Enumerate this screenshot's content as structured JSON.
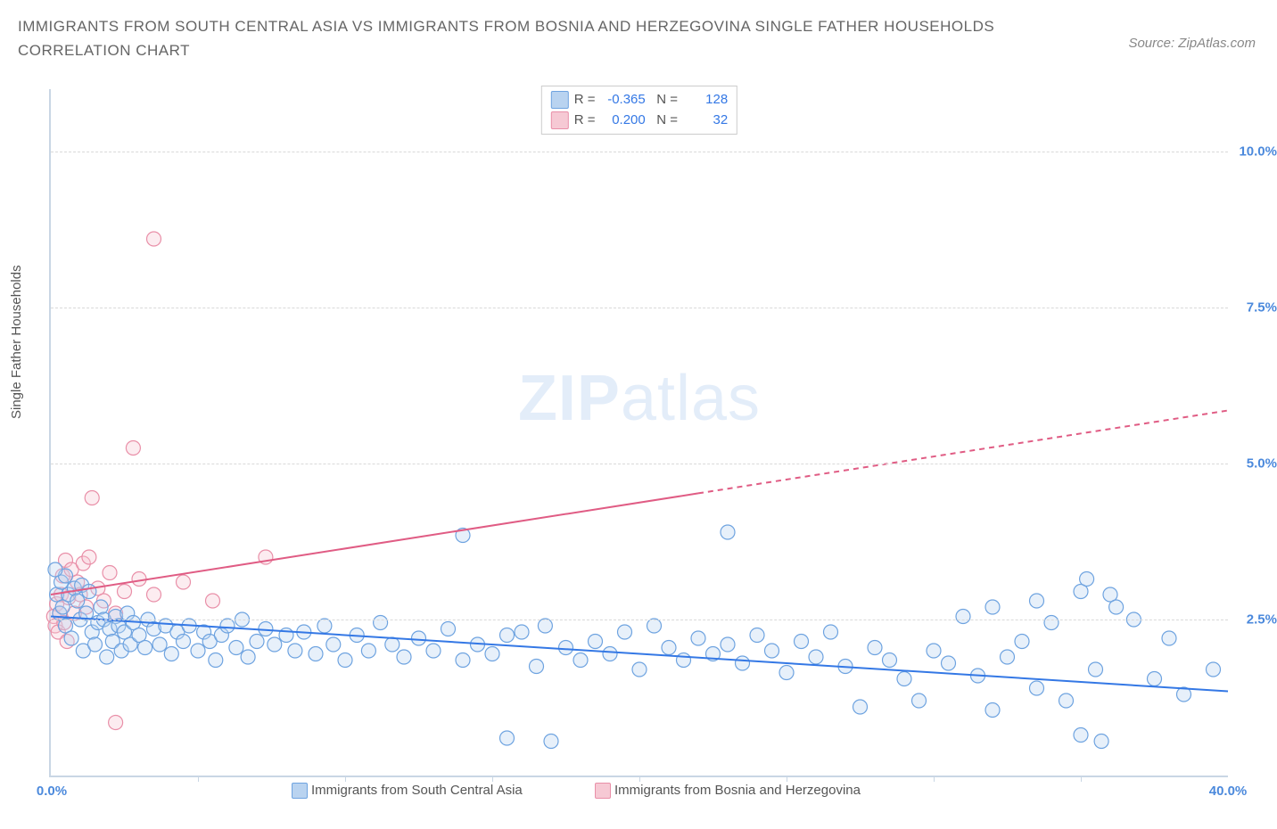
{
  "title": "IMMIGRANTS FROM SOUTH CENTRAL ASIA VS IMMIGRANTS FROM BOSNIA AND HERZEGOVINA SINGLE FATHER HOUSEHOLDS CORRELATION CHART",
  "source_label": "Source: ZipAtlas.com",
  "ylabel": "Single Father Households",
  "watermark_a": "ZIP",
  "watermark_b": "atlas",
  "chart": {
    "type": "scatter_with_regression",
    "background_color": "#ffffff",
    "grid_color": "#d9d9d9",
    "axis_color": "#c9d6e4",
    "text_color": "#555555",
    "value_color": "#4b89dc",
    "x_domain": [
      0,
      40
    ],
    "y_domain": [
      0,
      11
    ],
    "x_ticks": [
      0,
      40
    ],
    "x_tick_labels": [
      "0.0%",
      "40.0%"
    ],
    "minor_x_ticks": [
      5,
      10,
      15,
      20,
      25,
      30,
      35
    ],
    "y_gridlines": [
      2.5,
      5.0,
      7.5,
      10.0
    ],
    "y_tick_labels": [
      "2.5%",
      "5.0%",
      "7.5%",
      "10.0%"
    ],
    "marker_radius": 8,
    "marker_stroke_width": 1.2,
    "marker_fill_opacity": 0.35,
    "line_width": 2
  },
  "legend_stats": [
    {
      "name": "series-a",
      "color_fill": "#b9d3f0",
      "color_stroke": "#6ea3e0",
      "R": "-0.365",
      "N": "128"
    },
    {
      "name": "series-b",
      "color_fill": "#f6c9d4",
      "color_stroke": "#e98fa8",
      "R": "0.200",
      "N": "32"
    }
  ],
  "bottom_legend": [
    {
      "label": "Immigrants from South Central Asia",
      "fill": "#b9d3f0",
      "stroke": "#6ea3e0"
    },
    {
      "label": "Immigrants from Bosnia and Herzegovina",
      "fill": "#f6c9d4",
      "stroke": "#e98fa8"
    }
  ],
  "series_a": {
    "name": "Immigrants from South Central Asia",
    "color_fill": "#b9d3f0",
    "color_stroke": "#6ea3e0",
    "regression": {
      "x1": 0,
      "y1": 2.55,
      "x2": 40,
      "y2": 1.35,
      "dashed_after_x": null,
      "line_color": "#3478e5"
    },
    "points": [
      [
        0.2,
        2.9
      ],
      [
        0.3,
        2.6
      ],
      [
        0.35,
        3.1
      ],
      [
        0.4,
        2.7
      ],
      [
        0.5,
        2.4
      ],
      [
        0.5,
        3.2
      ],
      [
        0.6,
        2.9
      ],
      [
        0.7,
        2.2
      ],
      [
        0.8,
        3.0
      ],
      [
        0.9,
        2.8
      ],
      [
        1.0,
        2.5
      ],
      [
        1.05,
        3.05
      ],
      [
        1.1,
        2.0
      ],
      [
        1.2,
        2.6
      ],
      [
        1.3,
        2.95
      ],
      [
        1.4,
        2.3
      ],
      [
        1.5,
        2.1
      ],
      [
        1.6,
        2.45
      ],
      [
        1.7,
        2.7
      ],
      [
        1.8,
        2.5
      ],
      [
        1.9,
        1.9
      ],
      [
        2.0,
        2.35
      ],
      [
        2.1,
        2.15
      ],
      [
        2.2,
        2.55
      ],
      [
        2.3,
        2.4
      ],
      [
        2.4,
        2.0
      ],
      [
        2.5,
        2.3
      ],
      [
        2.6,
        2.6
      ],
      [
        2.7,
        2.1
      ],
      [
        2.8,
        2.45
      ],
      [
        3.0,
        2.25
      ],
      [
        3.2,
        2.05
      ],
      [
        3.3,
        2.5
      ],
      [
        3.5,
        2.35
      ],
      [
        3.7,
        2.1
      ],
      [
        3.9,
        2.4
      ],
      [
        4.1,
        1.95
      ],
      [
        4.3,
        2.3
      ],
      [
        4.5,
        2.15
      ],
      [
        4.7,
        2.4
      ],
      [
        5.0,
        2.0
      ],
      [
        5.2,
        2.3
      ],
      [
        5.4,
        2.15
      ],
      [
        5.6,
        1.85
      ],
      [
        5.8,
        2.25
      ],
      [
        6.0,
        2.4
      ],
      [
        6.3,
        2.05
      ],
      [
        6.5,
        2.5
      ],
      [
        6.7,
        1.9
      ],
      [
        7.0,
        2.15
      ],
      [
        7.3,
        2.35
      ],
      [
        7.6,
        2.1
      ],
      [
        8.0,
        2.25
      ],
      [
        8.3,
        2.0
      ],
      [
        8.6,
        2.3
      ],
      [
        9.0,
        1.95
      ],
      [
        9.3,
        2.4
      ],
      [
        9.6,
        2.1
      ],
      [
        10.0,
        1.85
      ],
      [
        10.4,
        2.25
      ],
      [
        10.8,
        2.0
      ],
      [
        11.2,
        2.45
      ],
      [
        11.6,
        2.1
      ],
      [
        12.0,
        1.9
      ],
      [
        12.5,
        2.2
      ],
      [
        13.0,
        2.0
      ],
      [
        13.5,
        2.35
      ],
      [
        14.0,
        1.85
      ],
      [
        14.0,
        3.85
      ],
      [
        14.5,
        2.1
      ],
      [
        15.0,
        1.95
      ],
      [
        15.5,
        2.25
      ],
      [
        15.5,
        0.6
      ],
      [
        16.0,
        2.3
      ],
      [
        16.5,
        1.75
      ],
      [
        16.8,
        2.4
      ],
      [
        17.0,
        0.55
      ],
      [
        17.5,
        2.05
      ],
      [
        18.0,
        1.85
      ],
      [
        18.5,
        2.15
      ],
      [
        19.0,
        1.95
      ],
      [
        19.5,
        2.3
      ],
      [
        20.0,
        1.7
      ],
      [
        20.5,
        2.4
      ],
      [
        21.0,
        2.05
      ],
      [
        21.5,
        1.85
      ],
      [
        22.0,
        2.2
      ],
      [
        22.5,
        1.95
      ],
      [
        23.0,
        2.1
      ],
      [
        23.0,
        3.9
      ],
      [
        23.5,
        1.8
      ],
      [
        24.0,
        2.25
      ],
      [
        24.5,
        2.0
      ],
      [
        25.0,
        1.65
      ],
      [
        25.5,
        2.15
      ],
      [
        26.0,
        1.9
      ],
      [
        26.5,
        2.3
      ],
      [
        27.0,
        1.75
      ],
      [
        27.5,
        1.1
      ],
      [
        28.0,
        2.05
      ],
      [
        28.5,
        1.85
      ],
      [
        29.0,
        1.55
      ],
      [
        29.5,
        1.2
      ],
      [
        30.0,
        2.0
      ],
      [
        30.5,
        1.8
      ],
      [
        31.0,
        2.55
      ],
      [
        31.5,
        1.6
      ],
      [
        32.0,
        1.05
      ],
      [
        32.0,
        2.7
      ],
      [
        32.5,
        1.9
      ],
      [
        33.0,
        2.15
      ],
      [
        33.5,
        2.8
      ],
      [
        33.5,
        1.4
      ],
      [
        34.0,
        2.45
      ],
      [
        34.5,
        1.2
      ],
      [
        35.0,
        2.95
      ],
      [
        35.0,
        0.65
      ],
      [
        35.2,
        3.15
      ],
      [
        35.5,
        1.7
      ],
      [
        35.7,
        0.55
      ],
      [
        36.0,
        2.9
      ],
      [
        36.2,
        2.7
      ],
      [
        36.8,
        2.5
      ],
      [
        37.5,
        1.55
      ],
      [
        38.0,
        2.2
      ],
      [
        38.5,
        1.3
      ],
      [
        39.5,
        1.7
      ],
      [
        0.15,
        3.3
      ]
    ]
  },
  "series_b": {
    "name": "Immigrants from Bosnia and Herzegovina",
    "color_fill": "#f6c9d4",
    "color_stroke": "#e98fa8",
    "regression": {
      "x1": 0,
      "y1": 2.9,
      "x2": 40,
      "y2": 5.85,
      "dashed_after_x": 22,
      "line_color": "#e05c84"
    },
    "points": [
      [
        0.1,
        2.55
      ],
      [
        0.15,
        2.4
      ],
      [
        0.2,
        2.75
      ],
      [
        0.25,
        2.3
      ],
      [
        0.3,
        2.6
      ],
      [
        0.35,
        2.9
      ],
      [
        0.4,
        3.2
      ],
      [
        0.45,
        2.45
      ],
      [
        0.5,
        3.45
      ],
      [
        0.55,
        2.15
      ],
      [
        0.6,
        2.85
      ],
      [
        0.7,
        3.3
      ],
      [
        0.8,
        2.6
      ],
      [
        0.9,
        3.1
      ],
      [
        1.0,
        2.9
      ],
      [
        1.1,
        3.4
      ],
      [
        1.2,
        2.7
      ],
      [
        1.3,
        3.5
      ],
      [
        1.4,
        4.45
      ],
      [
        1.6,
        3.0
      ],
      [
        1.8,
        2.8
      ],
      [
        2.0,
        3.25
      ],
      [
        2.2,
        2.6
      ],
      [
        2.2,
        0.85
      ],
      [
        2.5,
        2.95
      ],
      [
        2.8,
        5.25
      ],
      [
        3.0,
        3.15
      ],
      [
        3.5,
        2.9
      ],
      [
        4.5,
        3.1
      ],
      [
        5.5,
        2.8
      ],
      [
        7.3,
        3.5
      ],
      [
        3.5,
        8.6
      ]
    ]
  }
}
